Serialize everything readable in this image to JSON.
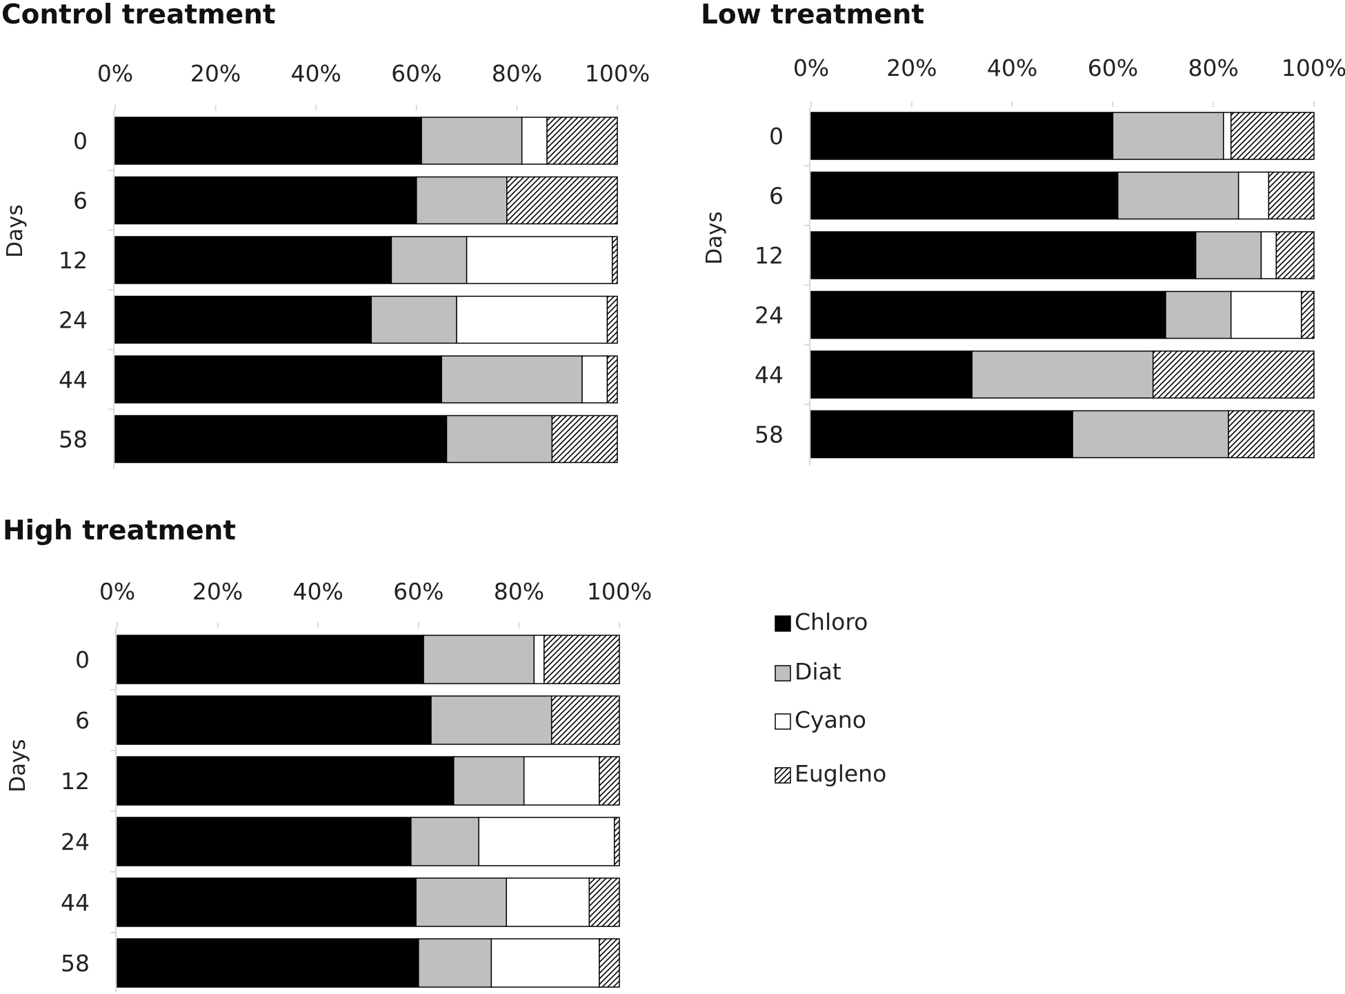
{
  "chart_data": [
    {
      "type": "bar",
      "orientation": "horizontal",
      "stacked": true,
      "percent": true,
      "title": "Control treatment",
      "ylabel": "Days",
      "categories": [
        "0",
        "6",
        "12",
        "24",
        "44",
        "58"
      ],
      "xticks": [
        "0%",
        "20%",
        "40%",
        "60%",
        "80%",
        "100%"
      ],
      "xlim": [
        0,
        100
      ],
      "series": [
        {
          "name": "Chloro",
          "values": [
            61,
            60,
            55,
            51,
            65,
            66
          ]
        },
        {
          "name": "Diat",
          "values": [
            20,
            18,
            15,
            17,
            28,
            21
          ]
        },
        {
          "name": "Cyano",
          "values": [
            5,
            0,
            29,
            30,
            5,
            0
          ]
        },
        {
          "name": "Eugleno",
          "values": [
            14,
            22,
            1,
            2,
            2,
            13
          ]
        }
      ]
    },
    {
      "type": "bar",
      "orientation": "horizontal",
      "stacked": true,
      "percent": true,
      "title": "Low treatment",
      "ylabel": "Days",
      "categories": [
        "0",
        "6",
        "12",
        "24",
        "44",
        "58"
      ],
      "xticks": [
        "0%",
        "20%",
        "40%",
        "60%",
        "80%",
        "100%"
      ],
      "xlim": [
        0,
        100
      ],
      "series": [
        {
          "name": "Chloro",
          "values": [
            60,
            61,
            76.5,
            70.5,
            32,
            52
          ]
        },
        {
          "name": "Diat",
          "values": [
            22,
            24,
            13,
            13,
            36,
            31
          ]
        },
        {
          "name": "Cyano",
          "values": [
            1.5,
            6,
            3,
            14,
            0,
            0
          ]
        },
        {
          "name": "Eugleno",
          "values": [
            16.5,
            9,
            7.5,
            2.5,
            32,
            17
          ]
        }
      ]
    },
    {
      "type": "bar",
      "orientation": "horizontal",
      "stacked": true,
      "percent": true,
      "title": "High treatment",
      "ylabel": "Days",
      "categories": [
        "0",
        "6",
        "12",
        "24",
        "44",
        "58"
      ],
      "xticks": [
        "0%",
        "20%",
        "40%",
        "60%",
        "80%",
        "100%"
      ],
      "xlim": [
        0,
        100
      ],
      "series": [
        {
          "name": "Chloro",
          "values": [
            61,
            62.5,
            67,
            58.5,
            59.5,
            60
          ]
        },
        {
          "name": "Diat",
          "values": [
            22,
            24,
            14,
            13.5,
            18,
            14.5
          ]
        },
        {
          "name": "Cyano",
          "values": [
            2,
            0,
            15,
            27,
            16.5,
            21.5
          ]
        },
        {
          "name": "Eugleno",
          "values": [
            15,
            13.5,
            4,
            1,
            6,
            4
          ]
        }
      ]
    }
  ],
  "legend": {
    "items": [
      {
        "name": "Chloro",
        "fill": "#000000"
      },
      {
        "name": "Diat",
        "fill": "#bfbfbf"
      },
      {
        "name": "Cyano",
        "fill": "#ffffff"
      },
      {
        "name": "Eugleno",
        "fill": "hatch"
      }
    ]
  },
  "colors": {
    "Chloro": "#000000",
    "Diat": "#bfbfbf",
    "Cyano": "#ffffff",
    "Eugleno": "hatch",
    "border": "#000000",
    "axis": "#d9d9d9"
  }
}
